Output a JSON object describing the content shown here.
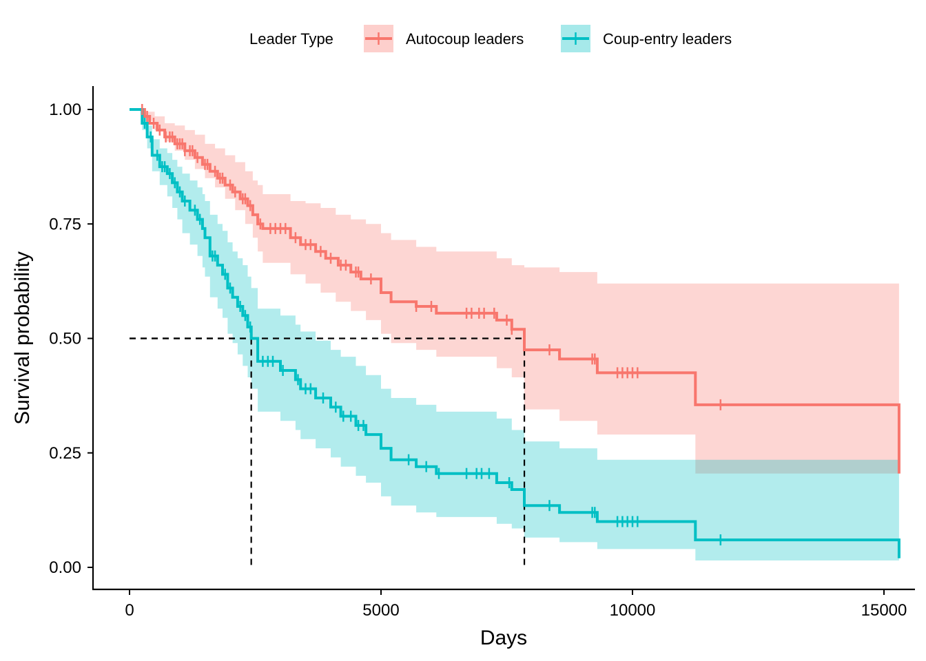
{
  "chart_data": {
    "type": "line",
    "subtype": "kaplan-meier",
    "xlabel": "Days",
    "ylabel": "Survival probability",
    "xlim": [
      0,
      15400
    ],
    "ylim": [
      0,
      1
    ],
    "xticks": [
      0,
      5000,
      10000,
      15000
    ],
    "xtick_labels": [
      "0",
      "5000",
      "10000",
      "15000"
    ],
    "yticks": [
      0,
      0.25,
      0.5,
      0.75,
      1
    ],
    "ytick_labels": [
      "0.00",
      "0.25",
      "0.50",
      "0.75",
      "1.00"
    ],
    "grid": false,
    "legend": {
      "title": "Leader Type",
      "position": "top",
      "entries": [
        "Autocoup leaders",
        "Coup-entry leaders"
      ]
    },
    "median_lines": [
      {
        "series": "Coup-entry leaders",
        "x": 2420,
        "y": 0.5
      },
      {
        "series": "Autocoup leaders",
        "x": 7850,
        "y": 0.5
      }
    ],
    "series": [
      {
        "name": "Autocoup leaders",
        "color": "#F8766D",
        "band_color": "#F8766D",
        "steps": [
          [
            0,
            1.0
          ],
          [
            300,
            0.985
          ],
          [
            400,
            0.97
          ],
          [
            550,
            0.955
          ],
          [
            700,
            0.94
          ],
          [
            900,
            0.925
          ],
          [
            1100,
            0.91
          ],
          [
            1300,
            0.895
          ],
          [
            1450,
            0.88
          ],
          [
            1600,
            0.865
          ],
          [
            1750,
            0.85
          ],
          [
            1900,
            0.835
          ],
          [
            2050,
            0.82
          ],
          [
            2200,
            0.805
          ],
          [
            2350,
            0.79
          ],
          [
            2450,
            0.77
          ],
          [
            2550,
            0.75
          ],
          [
            2650,
            0.74
          ],
          [
            3200,
            0.72
          ],
          [
            3400,
            0.705
          ],
          [
            3700,
            0.69
          ],
          [
            3900,
            0.675
          ],
          [
            4150,
            0.66
          ],
          [
            4400,
            0.645
          ],
          [
            4600,
            0.63
          ],
          [
            5000,
            0.6
          ],
          [
            5200,
            0.58
          ],
          [
            5700,
            0.57
          ],
          [
            6100,
            0.555
          ],
          [
            7300,
            0.54
          ],
          [
            7600,
            0.52
          ],
          [
            7850,
            0.475
          ],
          [
            8550,
            0.455
          ],
          [
            9300,
            0.425
          ],
          [
            11250,
            0.355
          ],
          [
            15300,
            0.205
          ]
        ],
        "lower": [
          [
            0,
            1.0
          ],
          [
            300,
            0.975
          ],
          [
            500,
            0.955
          ],
          [
            700,
            0.93
          ],
          [
            900,
            0.91
          ],
          [
            1100,
            0.89
          ],
          [
            1300,
            0.87
          ],
          [
            1500,
            0.85
          ],
          [
            1700,
            0.83
          ],
          [
            1900,
            0.805
          ],
          [
            2100,
            0.78
          ],
          [
            2300,
            0.75
          ],
          [
            2450,
            0.72
          ],
          [
            2550,
            0.69
          ],
          [
            2650,
            0.665
          ],
          [
            3200,
            0.64
          ],
          [
            3500,
            0.62
          ],
          [
            3800,
            0.6
          ],
          [
            4100,
            0.58
          ],
          [
            4400,
            0.56
          ],
          [
            4700,
            0.54
          ],
          [
            5000,
            0.51
          ],
          [
            5200,
            0.49
          ],
          [
            5700,
            0.475
          ],
          [
            6100,
            0.46
          ],
          [
            7300,
            0.435
          ],
          [
            7600,
            0.415
          ],
          [
            7850,
            0.345
          ],
          [
            8550,
            0.32
          ],
          [
            9300,
            0.29
          ],
          [
            11250,
            0.205
          ],
          [
            15300,
            0.205
          ]
        ],
        "upper": [
          [
            0,
            1.0
          ],
          [
            300,
            0.995
          ],
          [
            500,
            0.985
          ],
          [
            700,
            0.97
          ],
          [
            900,
            0.965
          ],
          [
            1100,
            0.955
          ],
          [
            1300,
            0.945
          ],
          [
            1500,
            0.925
          ],
          [
            1700,
            0.915
          ],
          [
            1900,
            0.9
          ],
          [
            2100,
            0.885
          ],
          [
            2300,
            0.865
          ],
          [
            2450,
            0.845
          ],
          [
            2550,
            0.835
          ],
          [
            2650,
            0.815
          ],
          [
            3200,
            0.8
          ],
          [
            3500,
            0.795
          ],
          [
            3800,
            0.785
          ],
          [
            4100,
            0.77
          ],
          [
            4400,
            0.76
          ],
          [
            4700,
            0.75
          ],
          [
            5000,
            0.73
          ],
          [
            5200,
            0.715
          ],
          [
            5700,
            0.7
          ],
          [
            6100,
            0.69
          ],
          [
            7300,
            0.675
          ],
          [
            7600,
            0.66
          ],
          [
            7850,
            0.655
          ],
          [
            8550,
            0.645
          ],
          [
            9300,
            0.62
          ],
          [
            11250,
            0.62
          ],
          [
            15300,
            0.62
          ]
        ],
        "censor": [
          250,
          350,
          480,
          600,
          720,
          800,
          850,
          950,
          1000,
          1050,
          1100,
          1200,
          1250,
          1350,
          1500,
          1550,
          1700,
          1800,
          1850,
          2000,
          2100,
          2250,
          2300,
          2400,
          2600,
          2800,
          2900,
          3000,
          3100,
          3300,
          3500,
          3600,
          3800,
          4000,
          4200,
          4300,
          4500,
          4550,
          4800,
          5700,
          6000,
          6700,
          6800,
          6950,
          7050,
          7250,
          7500,
          7600,
          8350,
          9200,
          9250,
          9700,
          9800,
          9900,
          10000,
          10100,
          11750
        ]
      },
      {
        "name": "Coup-entry leaders",
        "color": "#00BFC4",
        "band_color": "#00BFC4",
        "steps": [
          [
            0,
            1.0
          ],
          [
            250,
            0.97
          ],
          [
            350,
            0.94
          ],
          [
            450,
            0.9
          ],
          [
            600,
            0.875
          ],
          [
            750,
            0.86
          ],
          [
            850,
            0.84
          ],
          [
            950,
            0.82
          ],
          [
            1050,
            0.8
          ],
          [
            1200,
            0.78
          ],
          [
            1350,
            0.76
          ],
          [
            1450,
            0.74
          ],
          [
            1500,
            0.72
          ],
          [
            1600,
            0.68
          ],
          [
            1750,
            0.66
          ],
          [
            1850,
            0.64
          ],
          [
            1950,
            0.61
          ],
          [
            2050,
            0.59
          ],
          [
            2150,
            0.57
          ],
          [
            2250,
            0.55
          ],
          [
            2350,
            0.525
          ],
          [
            2420,
            0.5
          ],
          [
            2550,
            0.45
          ],
          [
            3000,
            0.43
          ],
          [
            3300,
            0.41
          ],
          [
            3400,
            0.39
          ],
          [
            3700,
            0.37
          ],
          [
            4000,
            0.35
          ],
          [
            4200,
            0.33
          ],
          [
            4500,
            0.31
          ],
          [
            4700,
            0.29
          ],
          [
            5000,
            0.26
          ],
          [
            5200,
            0.235
          ],
          [
            5700,
            0.22
          ],
          [
            6100,
            0.205
          ],
          [
            7300,
            0.185
          ],
          [
            7600,
            0.17
          ],
          [
            7850,
            0.135
          ],
          [
            8550,
            0.12
          ],
          [
            9300,
            0.1
          ],
          [
            11250,
            0.06
          ],
          [
            15300,
            0.02
          ]
        ],
        "lower": [
          [
            0,
            1.0
          ],
          [
            250,
            0.955
          ],
          [
            350,
            0.915
          ],
          [
            450,
            0.865
          ],
          [
            600,
            0.835
          ],
          [
            750,
            0.81
          ],
          [
            850,
            0.785
          ],
          [
            950,
            0.76
          ],
          [
            1050,
            0.73
          ],
          [
            1200,
            0.705
          ],
          [
            1350,
            0.68
          ],
          [
            1450,
            0.655
          ],
          [
            1500,
            0.635
          ],
          [
            1600,
            0.59
          ],
          [
            1750,
            0.565
          ],
          [
            1850,
            0.545
          ],
          [
            1950,
            0.51
          ],
          [
            2050,
            0.49
          ],
          [
            2150,
            0.465
          ],
          [
            2250,
            0.44
          ],
          [
            2350,
            0.415
          ],
          [
            2420,
            0.39
          ],
          [
            2550,
            0.34
          ],
          [
            3000,
            0.32
          ],
          [
            3300,
            0.3
          ],
          [
            3400,
            0.28
          ],
          [
            3700,
            0.26
          ],
          [
            4000,
            0.24
          ],
          [
            4200,
            0.22
          ],
          [
            4500,
            0.2
          ],
          [
            4700,
            0.185
          ],
          [
            5000,
            0.155
          ],
          [
            5200,
            0.135
          ],
          [
            5700,
            0.12
          ],
          [
            6100,
            0.11
          ],
          [
            7300,
            0.095
          ],
          [
            7600,
            0.085
          ],
          [
            7850,
            0.065
          ],
          [
            8550,
            0.055
          ],
          [
            9300,
            0.04
          ],
          [
            11250,
            0.015
          ],
          [
            15300,
            0.015
          ]
        ],
        "upper": [
          [
            0,
            1.0
          ],
          [
            250,
            0.985
          ],
          [
            350,
            0.965
          ],
          [
            450,
            0.935
          ],
          [
            600,
            0.915
          ],
          [
            750,
            0.905
          ],
          [
            850,
            0.89
          ],
          [
            950,
            0.875
          ],
          [
            1050,
            0.86
          ],
          [
            1200,
            0.845
          ],
          [
            1350,
            0.83
          ],
          [
            1450,
            0.815
          ],
          [
            1500,
            0.8
          ],
          [
            1600,
            0.77
          ],
          [
            1750,
            0.75
          ],
          [
            1850,
            0.735
          ],
          [
            1950,
            0.71
          ],
          [
            2050,
            0.69
          ],
          [
            2150,
            0.675
          ],
          [
            2250,
            0.66
          ],
          [
            2350,
            0.635
          ],
          [
            2420,
            0.61
          ],
          [
            2550,
            0.565
          ],
          [
            3000,
            0.55
          ],
          [
            3300,
            0.53
          ],
          [
            3400,
            0.515
          ],
          [
            3700,
            0.495
          ],
          [
            4000,
            0.475
          ],
          [
            4200,
            0.46
          ],
          [
            4500,
            0.44
          ],
          [
            4700,
            0.42
          ],
          [
            5000,
            0.39
          ],
          [
            5200,
            0.37
          ],
          [
            5700,
            0.355
          ],
          [
            6100,
            0.34
          ],
          [
            7300,
            0.325
          ],
          [
            7600,
            0.3
          ],
          [
            7850,
            0.275
          ],
          [
            8550,
            0.26
          ],
          [
            9300,
            0.235
          ],
          [
            11250,
            0.235
          ],
          [
            15300,
            0.235
          ]
        ],
        "censor": [
          300,
          420,
          550,
          650,
          700,
          800,
          900,
          1000,
          1100,
          1300,
          1400,
          1650,
          1700,
          1900,
          2000,
          2200,
          2300,
          2400,
          2650,
          2750,
          2850,
          3050,
          3350,
          3500,
          3600,
          3850,
          4100,
          4250,
          4400,
          4550,
          4650,
          5550,
          5900,
          6150,
          6700,
          6900,
          7000,
          7150,
          7550,
          8350,
          9200,
          9250,
          9700,
          9800,
          9900,
          10000,
          10100,
          11750
        ]
      }
    ]
  }
}
